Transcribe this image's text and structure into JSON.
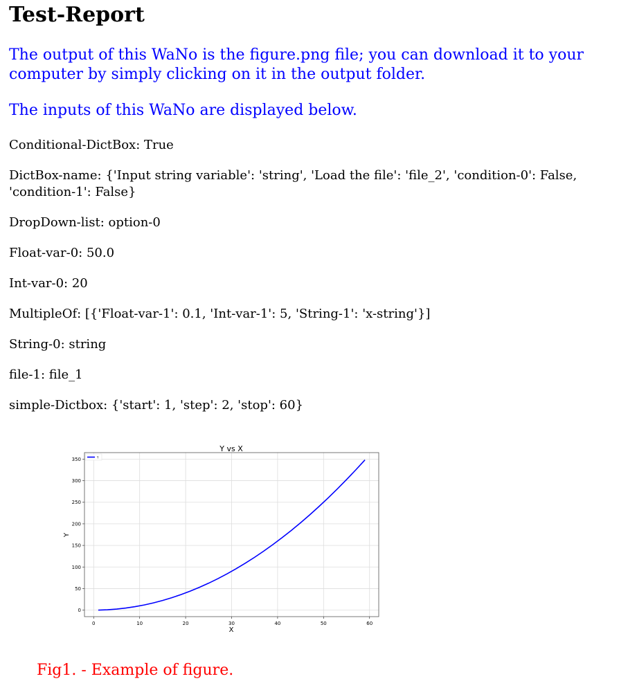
{
  "report": {
    "title": "Test-Report",
    "intro_line1": "The output of this WaNo is the figure.png file; you can download it to your",
    "intro_line2": "computer by simply clicking on it in the output folder.",
    "inputs_heading": "The inputs of this WaNo are displayed below."
  },
  "inputs": [
    "Conditional-DictBox: True",
    "DictBox-name: {'Input string variable': 'string', 'Load the file': 'file_2', 'condition-0': False,",
    "'condition-1': False}",
    "DropDown-list: option-0",
    "Float-var-0: 50.0",
    "Int-var-0: 20",
    "MultipleOf: [{'Float-var-1': 0.1, 'Int-var-1': 5, 'String-1': 'x-string'}]",
    "String-0: string",
    "file-1: file_1",
    "simple-Dictbox: {'start': 1, 'step': 2, 'stop': 60}"
  ],
  "caption": "Fig1. - Example of figure.",
  "colors": {
    "heading": "#000000",
    "intro_text": "#0000ff",
    "caption": "#ff0000",
    "series_line": "#0000ff"
  },
  "chart_data": {
    "type": "line",
    "title": "Y vs X",
    "xlabel": "X",
    "ylabel": "Y",
    "xlim": [
      -2,
      62
    ],
    "ylim": [
      -15,
      365
    ],
    "xticks": [
      0,
      10,
      20,
      30,
      40,
      50,
      60
    ],
    "yticks": [
      0,
      50,
      100,
      150,
      200,
      250,
      300,
      350
    ],
    "grid": true,
    "legend_placement": "top-left",
    "series": [
      {
        "name": "Y",
        "x": [
          1,
          3,
          5,
          7,
          9,
          11,
          13,
          15,
          17,
          19,
          21,
          23,
          25,
          27,
          29,
          31,
          33,
          35,
          37,
          39,
          41,
          43,
          45,
          47,
          49,
          51,
          53,
          55,
          57,
          59
        ],
        "y": [
          0.1,
          0.9,
          2.5,
          4.9,
          8.1,
          12.1,
          16.9,
          22.5,
          28.9,
          36.1,
          44.1,
          52.9,
          62.5,
          72.9,
          84.1,
          96.1,
          108.9,
          122.5,
          136.9,
          152.1,
          168.1,
          184.9,
          202.5,
          220.9,
          240.1,
          260.1,
          280.9,
          302.5,
          324.9,
          348.1
        ]
      }
    ]
  }
}
